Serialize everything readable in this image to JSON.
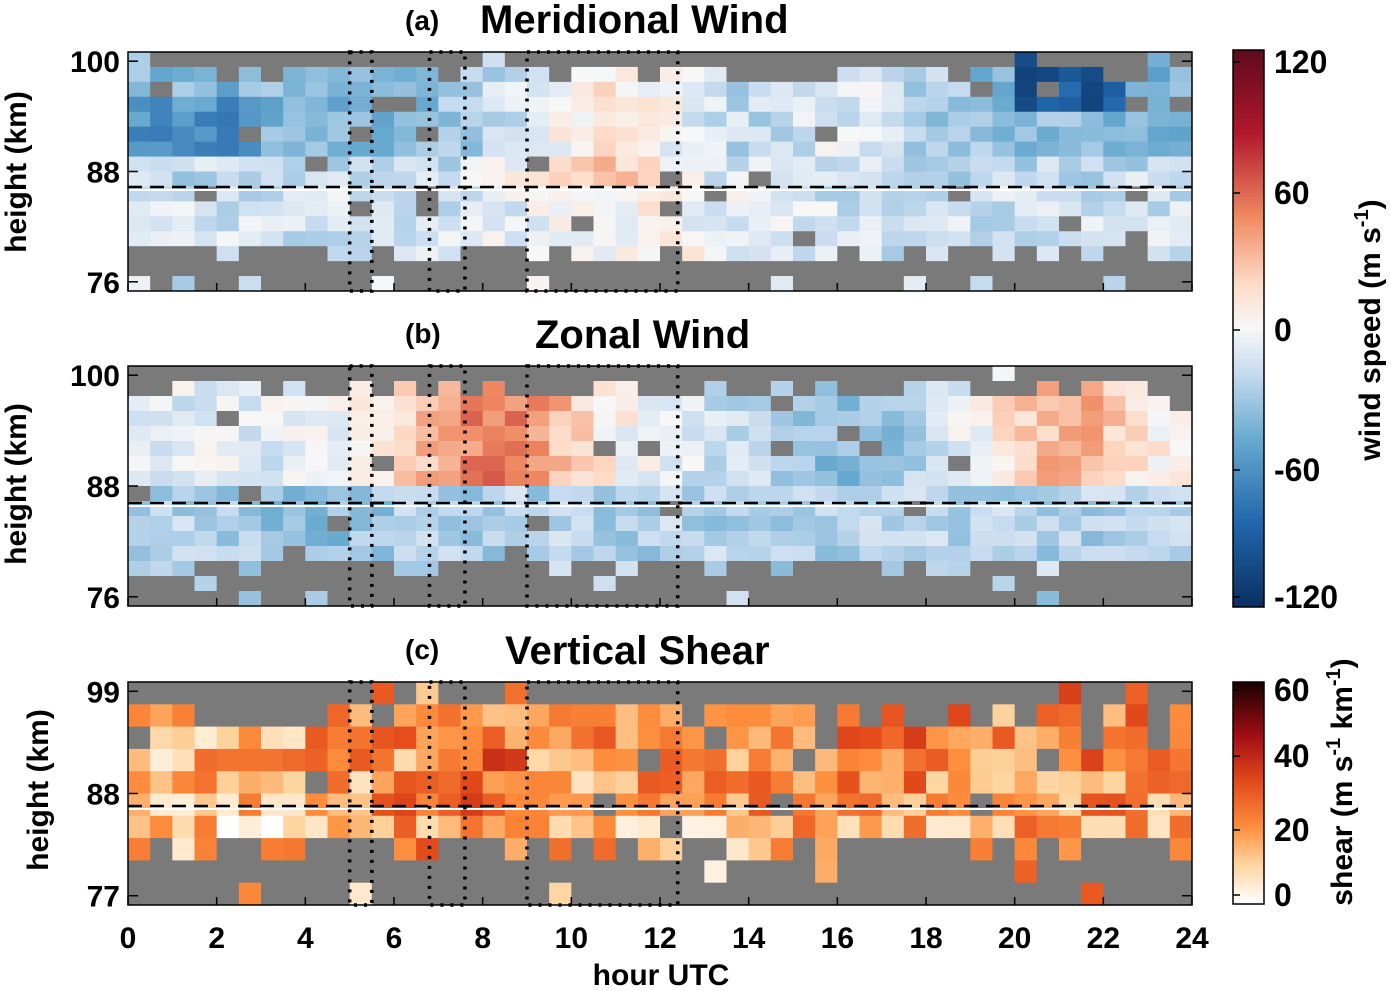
{
  "chart_data": [
    {
      "type": "heatmap",
      "letter": "(a)",
      "title": "Meridional Wind",
      "ylabel": "height (km)",
      "xlim": [
        0,
        24
      ],
      "ylim": [
        75,
        101
      ],
      "y_ticks": [
        100,
        88,
        76
      ],
      "x_bin_hours": 0.5,
      "height_bins_km": [
        100,
        98.5,
        97,
        95.5,
        94,
        92.5,
        91,
        89.5,
        88,
        86.5,
        85,
        83.5,
        82,
        80.5,
        79,
        77.5,
        76
      ],
      "dashed_line_height_km": 86.5,
      "dotted_boxes_hours": [
        [
          5.0,
          5.5
        ],
        [
          6.8,
          7.6
        ],
        [
          9.0,
          12.4
        ]
      ],
      "colormap": "red-white-blue",
      "clim": [
        -120,
        120
      ],
      "missing_color": "#7a7a7a",
      "colorbar": {
        "label": "wind speed (m s",
        "label_sup": "-1",
        "label_end": ")",
        "ticks": [
          "120",
          "60",
          "0",
          "-60",
          "-120"
        ]
      }
    },
    {
      "type": "heatmap",
      "letter": "(b)",
      "title": "Zonal Wind",
      "ylabel": "height (km)",
      "xlim": [
        0,
        24
      ],
      "ylim": [
        75,
        101
      ],
      "y_ticks": [
        100,
        88,
        76
      ],
      "x_bin_hours": 0.5,
      "dashed_line_height_km": 86.5,
      "dotted_boxes_hours": [
        [
          5.0,
          5.5
        ],
        [
          6.8,
          7.6
        ],
        [
          9.0,
          12.4
        ]
      ],
      "colormap": "red-white-blue",
      "clim": [
        -120,
        120
      ],
      "missing_color": "#7a7a7a"
    },
    {
      "type": "heatmap",
      "letter": "(c)",
      "title": "Vertical Shear",
      "ylabel": "height (km)",
      "xlabel": "hour UTC",
      "xlim": [
        0,
        24
      ],
      "x_ticks": [
        0,
        2,
        4,
        6,
        8,
        10,
        12,
        14,
        16,
        18,
        20,
        22,
        24
      ],
      "ylim": [
        76,
        100
      ],
      "y_ticks": [
        99,
        88,
        77
      ],
      "x_bin_hours": 0.5,
      "dashed_line_height_km": 86.5,
      "dotted_boxes_hours": [
        [
          5.0,
          5.5
        ],
        [
          6.8,
          7.6
        ],
        [
          9.0,
          12.4
        ]
      ],
      "colormap": "white-orange-red-black",
      "clim": [
        0,
        60
      ],
      "missing_color": "#7a7a7a",
      "colorbar": {
        "label": "shear (m s",
        "label_sup1": "-1",
        "label_mid": " km",
        "label_sup2": "-1",
        "label_end": ")",
        "ticks": [
          "60",
          "40",
          "20",
          "0"
        ]
      }
    }
  ]
}
